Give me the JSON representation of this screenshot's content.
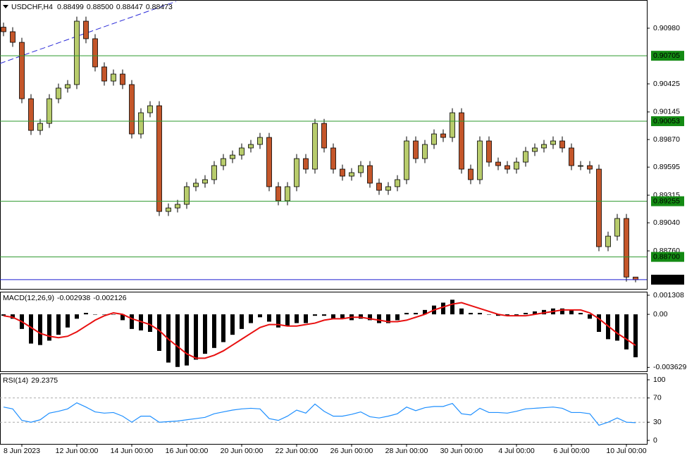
{
  "header": {
    "symbol": "USDCHF,H4",
    "ohlc_labels": [
      "0.88499",
      "0.88500",
      "0.88447",
      "0.88473"
    ]
  },
  "chart_data": [
    {
      "type": "candlestick",
      "up_color": "#b8cc6c",
      "down_color": "#c4562a",
      "open": [
        0.9099,
        0.90945,
        0.90839,
        0.90277,
        0.89961,
        0.90031,
        0.90277,
        0.90383,
        0.90418,
        0.9105,
        0.90875,
        0.90594,
        0.90453,
        0.90523,
        0.90418,
        0.89926,
        0.90137,
        0.90207,
        0.89153,
        0.89188,
        0.89224,
        0.894,
        0.89435,
        0.8947,
        0.8961,
        0.8968,
        0.89715,
        0.89786,
        0.89821,
        0.89891,
        0.894,
        0.89259,
        0.894,
        0.8968,
        0.89575,
        0.90031,
        0.89786,
        0.89575,
        0.89505,
        0.8954,
        0.8961,
        0.89435,
        0.89364,
        0.894,
        0.8947,
        0.89856,
        0.8968,
        0.89821,
        0.89926,
        0.89891,
        0.90137,
        0.89575,
        0.8947,
        0.89856,
        0.89645,
        0.8961,
        0.89575,
        0.89645,
        0.89751,
        0.89786,
        0.89821,
        0.89856,
        0.89786,
        0.8961,
        0.8961,
        0.89575,
        0.88802,
        0.88907,
        0.89083,
        0.88499
      ],
      "high": [
        0.91035,
        0.9099,
        0.90884,
        0.90322,
        0.90076,
        0.90322,
        0.90428,
        0.90463,
        0.91095,
        0.91095,
        0.9092,
        0.90639,
        0.90568,
        0.90568,
        0.90463,
        0.90182,
        0.90252,
        0.90252,
        0.89233,
        0.89269,
        0.89445,
        0.8948,
        0.89515,
        0.89655,
        0.89725,
        0.8976,
        0.89831,
        0.89866,
        0.89936,
        0.89936,
        0.89445,
        0.89445,
        0.89725,
        0.89725,
        0.90076,
        0.90076,
        0.89831,
        0.8962,
        0.89585,
        0.89655,
        0.89655,
        0.8948,
        0.89445,
        0.89515,
        0.89901,
        0.89901,
        0.89866,
        0.89971,
        0.89971,
        0.90182,
        0.90182,
        0.8962,
        0.89901,
        0.89901,
        0.8969,
        0.89655,
        0.8969,
        0.89796,
        0.89831,
        0.89866,
        0.89901,
        0.89901,
        0.89831,
        0.89655,
        0.89655,
        0.8962,
        0.88952,
        0.89128,
        0.89128,
        0.885
      ],
      "low": [
        0.909,
        0.90794,
        0.90232,
        0.89916,
        0.89916,
        0.89986,
        0.90232,
        0.90338,
        0.90373,
        0.9083,
        0.90549,
        0.90408,
        0.90408,
        0.90373,
        0.89881,
        0.89881,
        0.90092,
        0.89108,
        0.89108,
        0.89143,
        0.89179,
        0.89355,
        0.8939,
        0.89425,
        0.89565,
        0.89635,
        0.8967,
        0.89741,
        0.89776,
        0.89355,
        0.89214,
        0.89214,
        0.89355,
        0.8953,
        0.8953,
        0.89741,
        0.8953,
        0.8946,
        0.8946,
        0.89495,
        0.8939,
        0.89319,
        0.89319,
        0.89355,
        0.89425,
        0.89635,
        0.89635,
        0.89776,
        0.89846,
        0.89846,
        0.8953,
        0.89425,
        0.89425,
        0.896,
        0.89565,
        0.8953,
        0.8953,
        0.896,
        0.89706,
        0.89741,
        0.89776,
        0.89741,
        0.89565,
        0.89565,
        0.8953,
        0.88757,
        0.88757,
        0.88862,
        0.88454,
        0.88447
      ],
      "close": [
        0.90945,
        0.90839,
        0.90277,
        0.89961,
        0.90031,
        0.90277,
        0.90383,
        0.90418,
        0.9105,
        0.90875,
        0.90594,
        0.90453,
        0.90523,
        0.90418,
        0.89926,
        0.90137,
        0.90207,
        0.89153,
        0.89188,
        0.89224,
        0.894,
        0.89435,
        0.8947,
        0.8961,
        0.8968,
        0.89715,
        0.89786,
        0.89821,
        0.89891,
        0.894,
        0.89259,
        0.894,
        0.8968,
        0.89575,
        0.90031,
        0.89786,
        0.89575,
        0.89505,
        0.8954,
        0.8961,
        0.89435,
        0.89364,
        0.894,
        0.8947,
        0.89856,
        0.8968,
        0.89821,
        0.89926,
        0.89891,
        0.90137,
        0.89575,
        0.8947,
        0.89856,
        0.89645,
        0.8961,
        0.89575,
        0.89645,
        0.89751,
        0.89786,
        0.89821,
        0.89856,
        0.89786,
        0.8961,
        0.8961,
        0.89575,
        0.88802,
        0.88907,
        0.89083,
        0.88499,
        0.88473
      ],
      "ylim": [
        0.88381,
        0.91247
      ],
      "yticks": [
        {
          "value": 0.9098,
          "label": "0.90980"
        },
        0.90425,
        0.90145,
        {
          "value": 0.8987,
          "label": "0.89870"
        },
        0.89595,
        0.89315,
        {
          "value": 0.8904,
          "label": "0.89040"
        },
        {
          "value": 0.8876,
          "label": "0.88760"
        }
      ],
      "levels": [
        0.90705,
        0.90053,
        0.89255,
        {
          "value": 0.887,
          "label": "0.88700"
        }
      ],
      "level_color": "#2e9a2e",
      "level_box_color": "#138a13",
      "current_price": 0.88473,
      "current_price_color": "#1c1cd0"
    },
    {
      "type": "macd",
      "title": "MACD(12,26,9)",
      "series": [
        {
          "color": "#000000",
          "values": [
            -0.0001,
            -0.0003,
            -0.001,
            -0.002,
            -0.0021,
            -0.0018,
            -0.0014,
            -0.0009,
            -0.0003,
            0.0001,
            0,
            0,
            0,
            -0.0004,
            -0.001,
            -0.0011,
            -0.0012,
            -0.0025,
            -0.0033,
            -0.0036,
            -0.0035,
            -0.0031,
            -0.0027,
            -0.0023,
            -0.0019,
            -0.0014,
            -0.001,
            -0.0006,
            -0.0002,
            -0.0005,
            -0.0009,
            -0.0008,
            -0.0006,
            -0.0006,
            -0.0001,
            -0.0001,
            -0.0003,
            -0.0003,
            -0.0004,
            -0.0003,
            -0.0004,
            -0.0006,
            -0.0006,
            -0.0004,
            0.0001,
            0.0001,
            0.0003,
            0.0006,
            0.0008,
            0.001,
            0.0004,
            0.0001,
            0.0001,
            0,
            -0.0001,
            -0.0001,
            -0.0001,
            0.0001,
            0.0002,
            0.0003,
            0.0004,
            0.0004,
            0.0003,
            0.0001,
            -0.0003,
            -0.0012,
            -0.0017,
            -0.0018,
            -0.0024,
            -0.002938
          ]
        },
        {
          "color": "#e81010",
          "values": [
            -0.0001,
            -0.0002,
            -0.0005,
            -0.0009,
            -0.0013,
            -0.0015,
            -0.0016,
            -0.0015,
            -0.0012,
            -0.0008,
            -0.0004,
            -0.0001,
            0.0001,
            0,
            -0.0003,
            -0.0005,
            -0.0007,
            -0.0011,
            -0.0017,
            -0.0022,
            -0.0027,
            -0.003,
            -0.003,
            -0.0028,
            -0.0025,
            -0.0021,
            -0.0017,
            -0.0013,
            -0.0009,
            -0.0007,
            -0.0007,
            -0.0008,
            -0.0008,
            -0.0007,
            -0.0006,
            -0.0004,
            -0.0003,
            -0.0003,
            -0.0002,
            -0.0002,
            -0.0003,
            -0.0004,
            -0.0005,
            -0.0005,
            -0.0004,
            -0.0002,
            0,
            0.0003,
            0.0005,
            0.0007,
            0.0008,
            0.0006,
            0.0004,
            0.0002,
            0,
            -0.0001,
            -0.0001,
            -0.0001,
            0,
            0.0001,
            0.0002,
            0.0003,
            0.0003,
            0.0003,
            0.0001,
            -0.0003,
            -0.0008,
            -0.0013,
            -0.0017,
            -0.002126
          ]
        }
      ],
      "ylim": [
        -0.0039,
        0.0015
      ],
      "yticks": [
        0.001308,
        {
          "value": 0,
          "label": "0.00"
        },
        -0.003629
      ]
    },
    {
      "type": "line",
      "title": "RSI(14)",
      "color": "#1e8fff",
      "values": [
        55,
        52,
        33,
        30,
        34,
        45,
        48,
        52,
        62,
        55,
        47,
        45,
        46,
        40,
        30,
        40,
        40,
        30,
        31,
        32,
        34,
        36,
        38,
        44,
        47,
        50,
        52,
        53,
        52,
        36,
        33,
        40,
        50,
        45,
        60,
        48,
        40,
        40,
        43,
        47,
        39,
        37,
        40,
        44,
        55,
        49,
        54,
        56,
        56,
        61,
        44,
        42,
        53,
        46,
        46,
        45,
        48,
        52,
        53,
        54,
        55,
        53,
        46,
        46,
        44,
        25,
        30,
        37,
        30,
        29.2375
      ],
      "ylim": [
        -5.8,
        109.3
      ],
      "yticks": [
        100,
        70,
        30,
        0
      ],
      "levels": [
        70,
        30
      ],
      "categories": [
        null,
        null,
        "8 Jun 2023",
        null,
        null,
        null,
        null,
        null,
        "12 Jun 00:00",
        null,
        null,
        null,
        null,
        null,
        "14 Jun 00:00",
        null,
        null,
        null,
        null,
        null,
        "16 Jun 00:00",
        null,
        null,
        null,
        null,
        null,
        "20 Jun 00:00",
        null,
        null,
        null,
        null,
        null,
        "22 Jun 00:00",
        null,
        null,
        null,
        null,
        null,
        "26 Jun 00:00",
        null,
        null,
        null,
        null,
        null,
        "28 Jun 00:00",
        null,
        null,
        null,
        null,
        null,
        "30 Jun 00:00",
        null,
        null,
        null,
        null,
        null,
        "4 Jul 00:00",
        null,
        null,
        null,
        null,
        null,
        "6 Jul 00:00",
        null,
        null,
        null,
        null,
        null,
        "10 Jul 00:00",
        null
      ]
    }
  ]
}
